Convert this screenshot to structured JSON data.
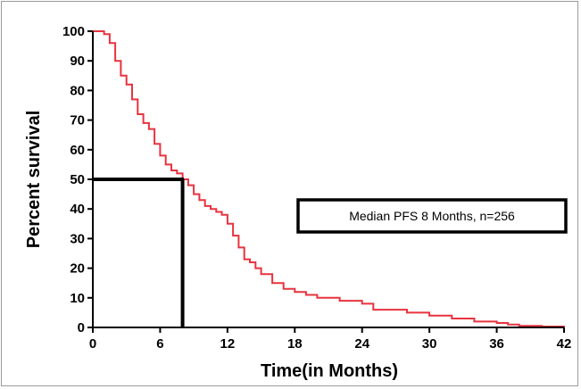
{
  "chart_data": {
    "type": "line",
    "xlabel": "Time(in Months)",
    "ylabel": "Percent survival",
    "xlim": [
      0,
      42
    ],
    "ylim": [
      0,
      100
    ],
    "xticks": [
      0,
      6,
      12,
      18,
      24,
      30,
      36,
      42
    ],
    "yticks": [
      0,
      10,
      20,
      30,
      40,
      50,
      60,
      70,
      80,
      90,
      100
    ],
    "grid": false,
    "series": [
      {
        "color": "#e8333f",
        "x": [
          0,
          1,
          1.5,
          2,
          2.5,
          3,
          3.5,
          4,
          4.5,
          5,
          5.5,
          6,
          6.5,
          7,
          7.5,
          8,
          8.5,
          9,
          9.5,
          10,
          10.5,
          11,
          11.5,
          12,
          12.5,
          13,
          13.5,
          14,
          14.5,
          15,
          16,
          17,
          18,
          19,
          20,
          22,
          24,
          25,
          26,
          28,
          30,
          32,
          34,
          36,
          37,
          38,
          40,
          42
        ],
        "y": [
          100,
          99,
          96,
          90,
          85,
          82,
          77,
          72,
          69,
          67,
          62,
          58,
          55,
          53,
          52,
          50,
          48,
          45,
          43,
          41,
          40,
          39,
          38,
          35,
          31,
          27,
          23,
          22,
          20,
          18,
          15,
          13,
          12,
          11,
          10,
          9,
          8,
          6,
          6,
          5,
          4,
          3,
          2,
          1.5,
          1,
          0.5,
          0.3,
          0
        ]
      }
    ],
    "median": {
      "x": 8,
      "y": 50
    },
    "annotation": "Median PFS 8 Months, n=256"
  }
}
